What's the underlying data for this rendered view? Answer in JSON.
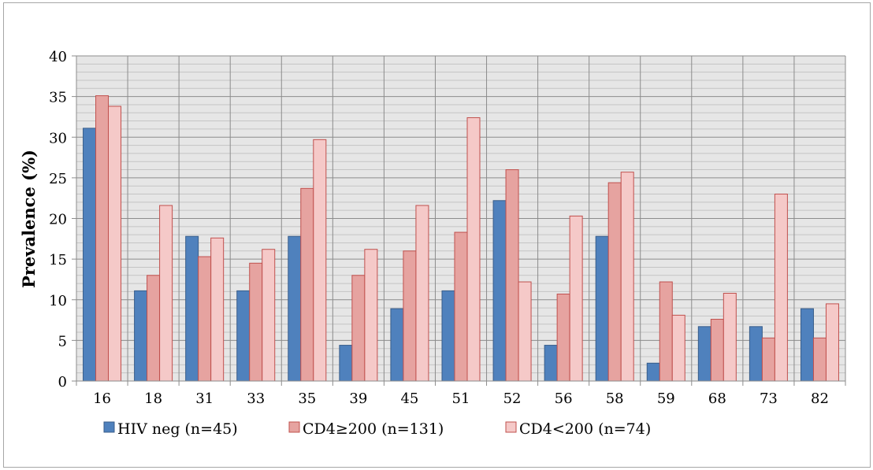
{
  "chart_data": {
    "type": "bar",
    "title": "",
    "xlabel": "",
    "ylabel": "Prevalence (%)",
    "ylim": [
      0,
      40
    ],
    "yticks": [
      "0",
      "5",
      "10",
      "15",
      "20",
      "25",
      "30",
      "35",
      "40"
    ],
    "categories": [
      "16",
      "18",
      "31",
      "33",
      "35",
      "39",
      "45",
      "51",
      "52",
      "56",
      "58",
      "59",
      "68",
      "73",
      "82"
    ],
    "grid": true,
    "legend_position": "bottom",
    "series": [
      {
        "name": "HIV neg (n=45)",
        "color": "#4f81bd",
        "border": "#385d8a",
        "values": [
          31.1,
          11.1,
          17.8,
          11.1,
          17.8,
          4.4,
          8.9,
          11.1,
          22.2,
          4.4,
          17.8,
          2.2,
          6.7,
          6.7,
          8.9
        ]
      },
      {
        "name": "CD4≥200 (n=131)",
        "color": "#e6a3a0",
        "border": "#c0504d",
        "values": [
          35.1,
          13.0,
          15.3,
          14.5,
          23.7,
          13.0,
          16.0,
          18.3,
          26.0,
          10.7,
          24.4,
          12.2,
          7.6,
          5.3,
          5.3
        ]
      },
      {
        "name": "CD4<200 (n=74)",
        "color": "#f5c9c8",
        "border": "#c0504d",
        "values": [
          33.8,
          21.6,
          17.6,
          16.2,
          29.7,
          16.2,
          21.6,
          32.4,
          12.2,
          20.3,
          25.7,
          8.1,
          10.8,
          23.0,
          9.5
        ]
      }
    ]
  }
}
